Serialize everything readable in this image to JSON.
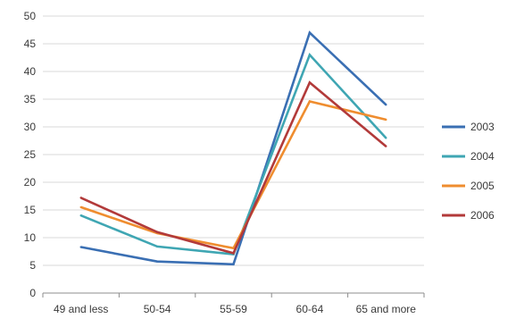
{
  "chart_data": {
    "type": "line",
    "categories": [
      "49 and less",
      "50-54",
      "55-59",
      "60-64",
      "65 and more"
    ],
    "series": [
      {
        "name": "2003",
        "color": "#3A6FB3",
        "values": [
          8.3,
          5.7,
          5.2,
          47.0,
          34.0
        ]
      },
      {
        "name": "2004",
        "color": "#3FA6B3",
        "values": [
          14.0,
          8.4,
          7.0,
          43.0,
          28.0
        ]
      },
      {
        "name": "2005",
        "color": "#EF8D2F",
        "values": [
          15.5,
          10.8,
          8.1,
          34.6,
          31.3
        ]
      },
      {
        "name": "2006",
        "color": "#B23A3A",
        "values": [
          17.2,
          11.0,
          7.2,
          38.0,
          26.5
        ]
      }
    ],
    "ylim": [
      0,
      50
    ],
    "yticks": [
      "0",
      "5",
      "10",
      "15",
      "20",
      "25",
      "30",
      "35",
      "40",
      "45",
      "50"
    ],
    "grid": true,
    "legend_position": "right"
  }
}
